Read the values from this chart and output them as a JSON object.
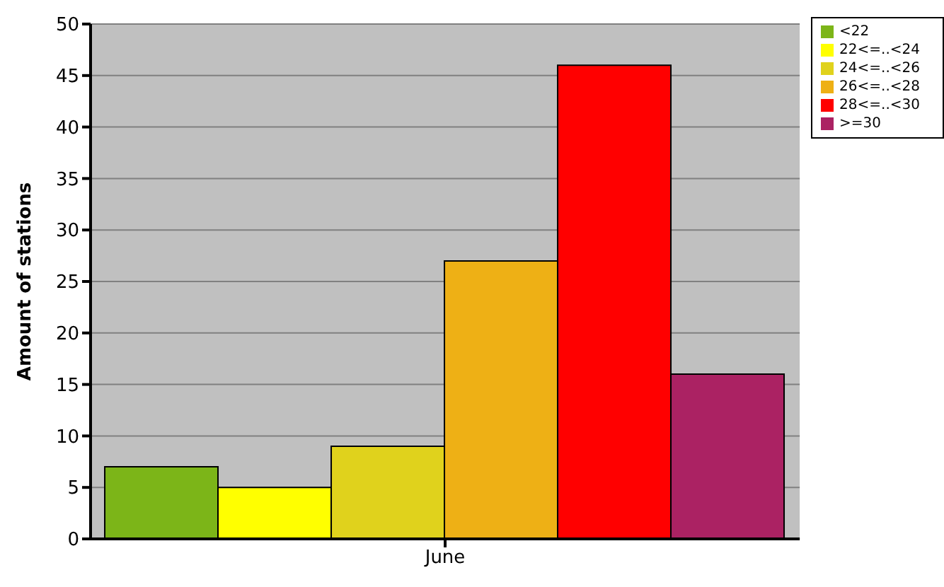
{
  "chart_data": {
    "type": "bar",
    "ylabel": "Amount of stations",
    "categories": [
      "June"
    ],
    "series": [
      {
        "name": "<22",
        "color": "#7cb518",
        "values": [
          7
        ]
      },
      {
        "name": "22<=..<24",
        "color": "#ffff00",
        "values": [
          5
        ]
      },
      {
        "name": "24<=..<26",
        "color": "#e0d21c",
        "values": [
          9
        ]
      },
      {
        "name": "26<=..<28",
        "color": "#eeb015",
        "values": [
          27
        ]
      },
      {
        "name": "28<=..<30",
        "color": "#ff0000",
        "values": [
          46
        ]
      },
      {
        "name": ">=30",
        "color": "#ab2263",
        "values": [
          16
        ]
      }
    ],
    "ylim": [
      0,
      50
    ],
    "yticks": [
      0,
      5,
      10,
      15,
      20,
      25,
      30,
      35,
      40,
      45,
      50
    ],
    "grid": "y",
    "legend": "top right"
  }
}
